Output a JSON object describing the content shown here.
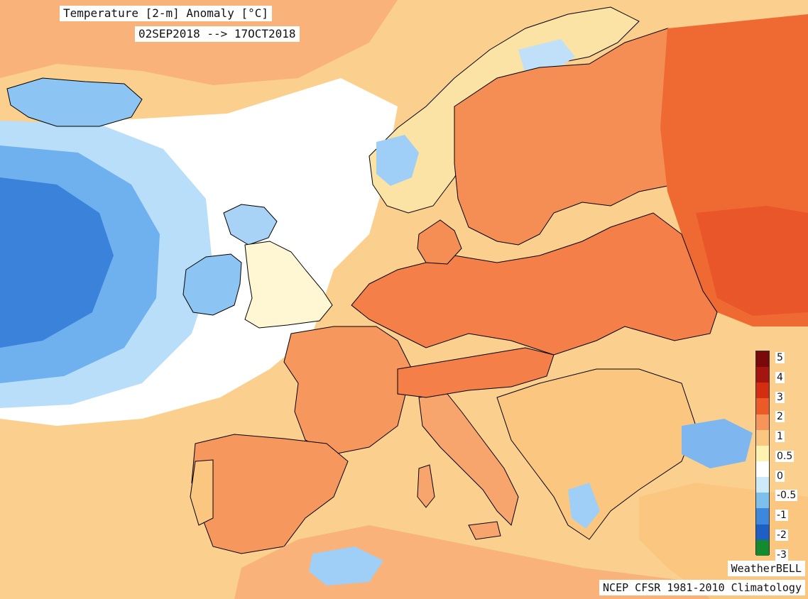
{
  "title": "Temperature [2-m] Anomaly [°C]",
  "period": "02SEP2018 --> 17OCT2018",
  "credit": "WeatherBELL",
  "climatology": "NCEP CFSR 1981-2010 Climatology",
  "legend": {
    "ticks": [
      "5",
      "4",
      "3",
      "2",
      "1",
      "0.5",
      "0",
      "-0.5",
      "-1",
      "-2",
      "-3"
    ],
    "colors": [
      "#7a0a0a",
      "#a51510",
      "#d42d12",
      "#ec5a27",
      "#f7945a",
      "#fbc780",
      "#fdf2b0",
      "#ffffff",
      "#cdeaf8",
      "#7ec0ec",
      "#3d88dc",
      "#1f5fc4",
      "#138a2e"
    ]
  },
  "palette": {
    "ocean_cool": "#4f98e3",
    "ocean_cold": "#2e78d6",
    "near_zero": "#ffffff",
    "slight_warm": "#fde7a6",
    "warm": "#f8a86a",
    "hot": "#ef6a33",
    "land_lines": "#000000"
  }
}
